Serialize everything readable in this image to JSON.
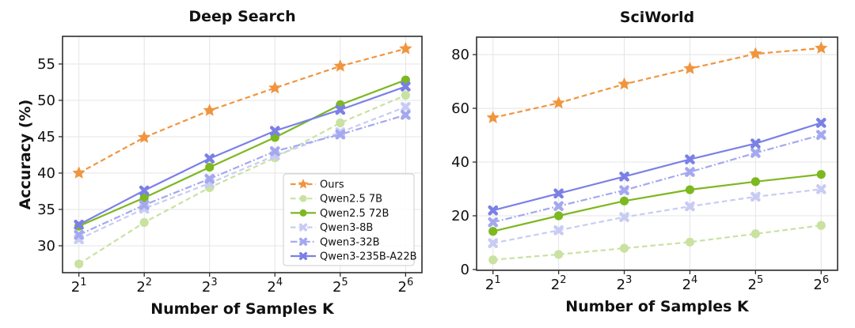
{
  "figure": {
    "background": "#ffffff"
  },
  "style": {
    "grid_color": "#e4e4e4",
    "spine_color": "#2d2d2d",
    "tick_color": "#2d2d2d",
    "text_color": "#111111",
    "legend_border": "#cccccc",
    "legend_fill": "#ffffff",
    "line_width": 2.2
  },
  "chart_data": [
    {
      "type": "line",
      "title": "Deep Search",
      "xlabel": "Number of Samples K",
      "ylabel": "Accuracy (%)",
      "x_tick_base": "2",
      "x_tick_exponents": [
        1,
        2,
        3,
        4,
        5,
        6
      ],
      "x_values": [
        2,
        4,
        8,
        16,
        32,
        64
      ],
      "ylim": [
        26.3,
        58.8
      ],
      "yticks": [
        30,
        35,
        40,
        45,
        50,
        55
      ],
      "grid": true,
      "legend": {
        "show": true,
        "position": "lower right"
      },
      "series": [
        {
          "name": "Ours",
          "color": "#F0953E",
          "marker": "star",
          "line": "dashed",
          "values": [
            40.0,
            44.9,
            48.6,
            51.7,
            54.7,
            57.1
          ]
        },
        {
          "name": "Qwen2.5 7B",
          "color": "#C9E2A0",
          "marker": "circle",
          "line": "dashed",
          "values": [
            27.5,
            33.2,
            38.0,
            42.1,
            46.9,
            50.7
          ]
        },
        {
          "name": "Qwen2.5 72B",
          "color": "#7CB820",
          "marker": "circle",
          "line": "solid",
          "values": [
            32.7,
            36.6,
            40.8,
            44.9,
            49.4,
            52.8
          ]
        },
        {
          "name": "Qwen3-8B",
          "color": "#C8CCF4",
          "marker": "x",
          "line": "dashed",
          "values": [
            30.9,
            35.1,
            38.6,
            42.4,
            45.6,
            49.1
          ]
        },
        {
          "name": "Qwen3-32B",
          "color": "#A3A8EF",
          "marker": "x",
          "line": "dashdot",
          "values": [
            31.5,
            35.6,
            39.2,
            43.0,
            45.3,
            48.0
          ]
        },
        {
          "name": "Qwen3-235B-A22B",
          "color": "#7B80E6",
          "marker": "x",
          "line": "solid",
          "values": [
            32.9,
            37.6,
            42.0,
            45.8,
            48.7,
            51.9
          ]
        }
      ]
    },
    {
      "type": "line",
      "title": "SciWorld",
      "xlabel": "Number of Samples K",
      "ylabel": "",
      "x_tick_base": "2",
      "x_tick_exponents": [
        1,
        2,
        3,
        4,
        5,
        6
      ],
      "x_values": [
        2,
        4,
        8,
        16,
        32,
        64
      ],
      "ylim": [
        -0.3,
        86.5
      ],
      "yticks": [
        0,
        20,
        40,
        60,
        80
      ],
      "grid": true,
      "legend": {
        "show": false,
        "position": ""
      },
      "series": [
        {
          "name": "Ours",
          "color": "#F0953E",
          "marker": "star",
          "line": "dashed",
          "values": [
            56.5,
            62.0,
            69.0,
            74.8,
            80.3,
            82.4
          ]
        },
        {
          "name": "Qwen2.5 7B",
          "color": "#C9E2A0",
          "marker": "circle",
          "line": "dashed",
          "values": [
            3.6,
            5.6,
            7.9,
            10.2,
            13.3,
            16.4
          ]
        },
        {
          "name": "Qwen2.5 72B",
          "color": "#7CB820",
          "marker": "circle",
          "line": "solid",
          "values": [
            14.2,
            20.0,
            25.5,
            29.7,
            32.7,
            35.4
          ]
        },
        {
          "name": "Qwen3-8B",
          "color": "#C8CCF4",
          "marker": "x",
          "line": "dashed",
          "values": [
            9.8,
            14.6,
            19.5,
            23.5,
            27.1,
            29.9
          ]
        },
        {
          "name": "Qwen3-32B",
          "color": "#A3A8EF",
          "marker": "x",
          "line": "dashdot",
          "values": [
            17.6,
            23.6,
            29.5,
            36.3,
            43.4,
            50.1
          ]
        },
        {
          "name": "Qwen3-235B-A22B",
          "color": "#7B80E6",
          "marker": "x",
          "line": "solid",
          "values": [
            22.0,
            28.3,
            34.6,
            41.0,
            46.9,
            54.6
          ]
        }
      ]
    }
  ]
}
